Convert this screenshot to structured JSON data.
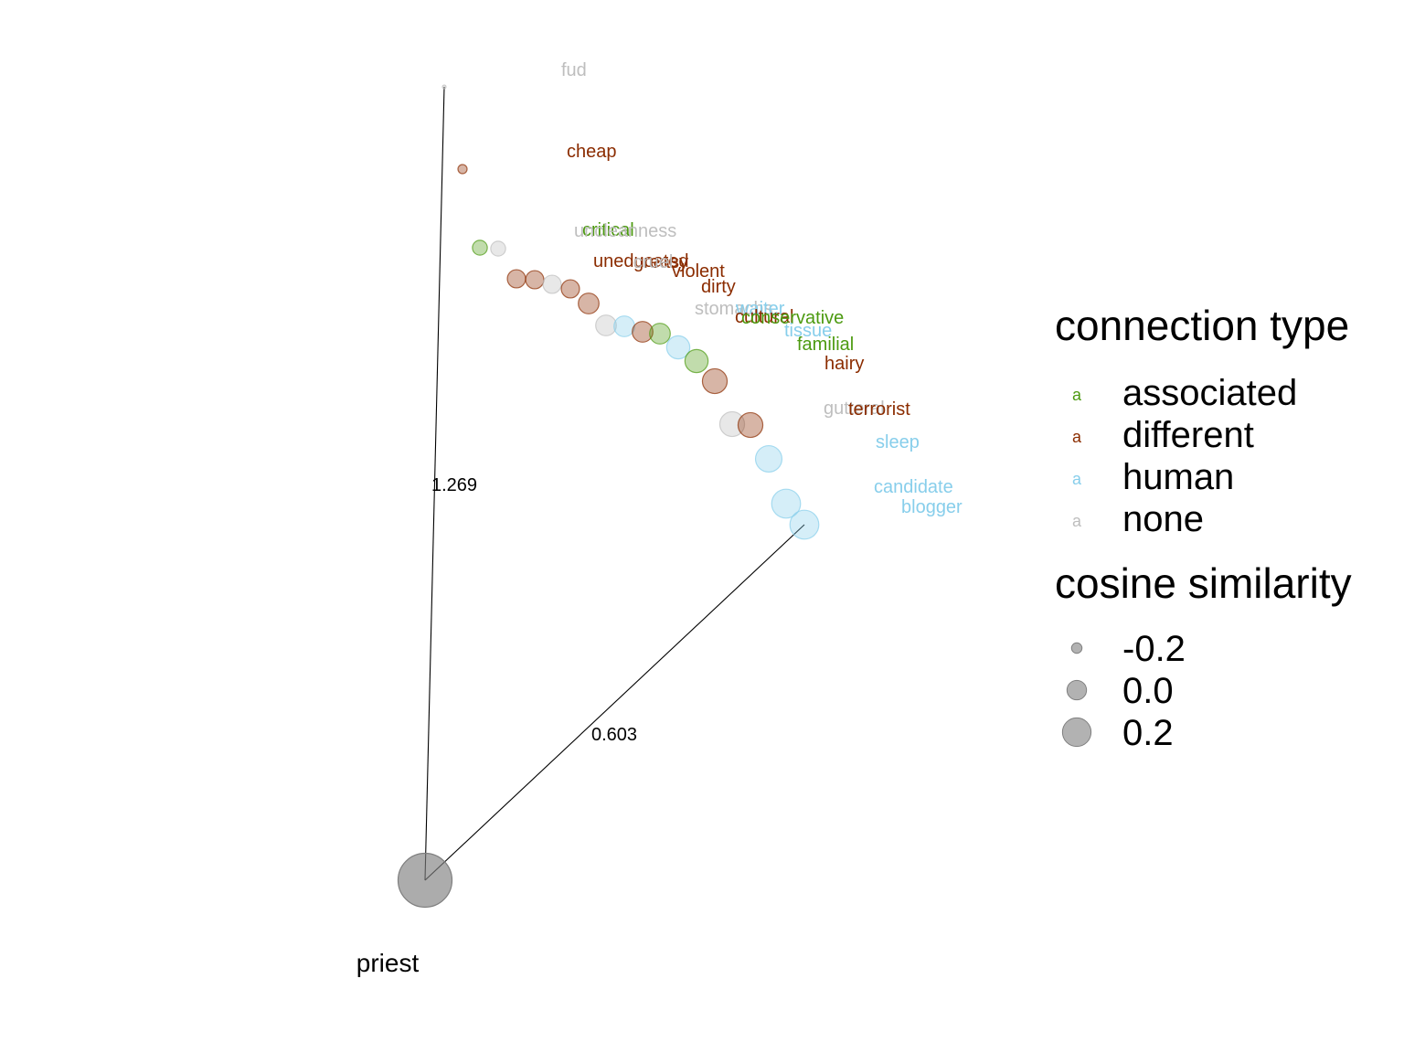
{
  "chart_data": {
    "type": "scatter",
    "title": "",
    "origin_word": "priest",
    "edge_labels": [
      "1.269",
      "0.603"
    ],
    "colors": {
      "associated": "#4c9a10",
      "different": "#8b2c00",
      "human": "#87ceeb",
      "none": "#bebebe",
      "origin": "#7f7f7f"
    },
    "legend_color": {
      "title": "connection type",
      "items": [
        {
          "key": "associated",
          "label": "associated",
          "glyph": "a"
        },
        {
          "key": "different",
          "label": "different",
          "glyph": "a"
        },
        {
          "key": "human",
          "label": "human",
          "glyph": "a"
        },
        {
          "key": "none",
          "label": "none",
          "glyph": "a"
        }
      ]
    },
    "legend_size": {
      "title": "cosine similarity",
      "items": [
        {
          "label": "-0.2",
          "value": -0.2
        },
        {
          "label": "0.0",
          "value": 0.0
        },
        {
          "label": "0.2",
          "value": 0.2
        }
      ]
    },
    "points": [
      {
        "word": "fud",
        "type": "none",
        "similarity": -0.35
      },
      {
        "word": "cheap",
        "type": "different",
        "similarity": -0.2
      },
      {
        "word": "critical",
        "type": "associated",
        "similarity": -0.13
      },
      {
        "word": "uncleanness",
        "type": "none",
        "similarity": -0.13
      },
      {
        "word": "uneducated",
        "type": "different",
        "similarity": -0.09
      },
      {
        "word": "greasy",
        "type": "different",
        "similarity": -0.09
      },
      {
        "word": "cruel",
        "type": "none",
        "similarity": -0.09
      },
      {
        "word": "violent",
        "type": "different",
        "similarity": -0.09
      },
      {
        "word": "dirty",
        "type": "different",
        "similarity": -0.06
      },
      {
        "word": "stomachs",
        "type": "none",
        "similarity": -0.06
      },
      {
        "word": "waiter",
        "type": "human",
        "similarity": -0.06
      },
      {
        "word": "cultural",
        "type": "different",
        "similarity": -0.06
      },
      {
        "word": "conservative",
        "type": "associated",
        "similarity": -0.06
      },
      {
        "word": "tissue",
        "type": "human",
        "similarity": -0.03
      },
      {
        "word": "familial",
        "type": "associated",
        "similarity": -0.03
      },
      {
        "word": "hairy",
        "type": "different",
        "similarity": -0.01
      },
      {
        "word": "gutteral",
        "type": "none",
        "similarity": -0.01
      },
      {
        "word": "terrorist",
        "type": "different",
        "similarity": -0.01
      },
      {
        "word": "sleep",
        "type": "human",
        "similarity": 0.01
      },
      {
        "word": "candidate",
        "type": "human",
        "similarity": 0.04
      },
      {
        "word": "blogger",
        "type": "human",
        "similarity": 0.04
      }
    ]
  }
}
